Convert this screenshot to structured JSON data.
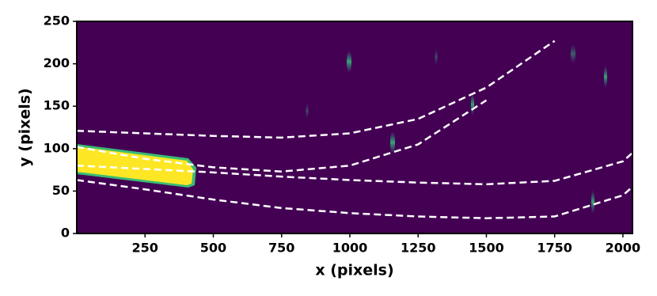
{
  "chart_data": {
    "type": "line",
    "x_label": "x (pixels)",
    "y_label": "y (pixels)",
    "x": [
      0,
      250,
      500,
      750,
      1000,
      1250,
      1500,
      1750,
      2000,
      2035
    ],
    "series": [
      {
        "color": "#ffffff",
        "values": [
          121,
          118,
          115,
          113,
          118,
          135,
          172,
          227,
          null,
          null
        ]
      },
      {
        "color": "#ffffff",
        "values": [
          102,
          88,
          78,
          73,
          80,
          105,
          157,
          null,
          null,
          null
        ]
      },
      {
        "color": "#ffffff",
        "values": [
          80,
          76,
          72,
          67,
          63,
          60,
          58,
          62,
          85,
          95
        ]
      },
      {
        "color": "#ffffff",
        "values": [
          63,
          52,
          40,
          30,
          24,
          20,
          18,
          20,
          45,
          55
        ]
      }
    ],
    "background": "#440154",
    "xlim": [
      0,
      2035
    ],
    "xticks": [
      250,
      500,
      750,
      1000,
      1250,
      1500,
      1750,
      2000
    ],
    "ylim": [
      0,
      250
    ],
    "yticks": [
      0,
      50,
      100,
      150,
      200,
      250
    ]
  }
}
